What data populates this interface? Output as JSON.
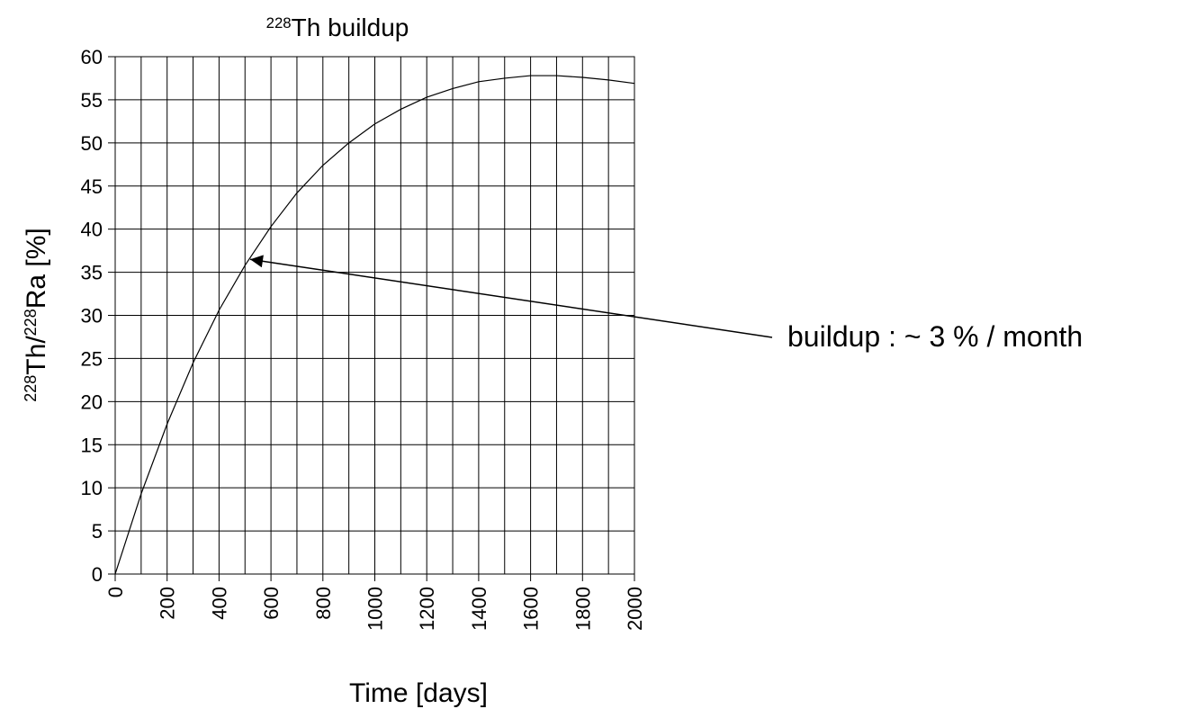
{
  "chart_data": {
    "type": "line",
    "title": [
      {
        "text": "228",
        "sup": true
      },
      {
        "text": "Th buildup"
      }
    ],
    "x_label": "Time [days]",
    "y_label": [
      {
        "text": "228",
        "sup": true
      },
      {
        "text": "Th/"
      },
      {
        "text": "228",
        "sup": true
      },
      {
        "text": "Ra [%]"
      }
    ],
    "x": [
      0,
      100,
      200,
      300,
      400,
      500,
      600,
      700,
      800,
      900,
      1000,
      1100,
      1200,
      1300,
      1400,
      1500,
      1600,
      1700,
      1800,
      1900,
      2000
    ],
    "series": [
      {
        "color": "#000000",
        "values": [
          0,
          9.3,
          17.4,
          24.5,
          30.6,
          35.8,
          40.3,
          44.2,
          47.4,
          50.0,
          52.2,
          53.9,
          55.3,
          56.3,
          57.1,
          57.5,
          57.8,
          57.8,
          57.6,
          57.3,
          56.9
        ]
      }
    ],
    "xlim": [
      0,
      2000
    ],
    "ylim": [
      0,
      60
    ],
    "xticks": [
      0,
      200,
      400,
      600,
      800,
      1000,
      1200,
      1400,
      1600,
      1800,
      2000
    ],
    "yticks": [
      0,
      5,
      10,
      15,
      20,
      25,
      30,
      35,
      40,
      45,
      50,
      55,
      60
    ],
    "xgrid": [
      0,
      100,
      200,
      300,
      400,
      500,
      600,
      700,
      800,
      900,
      1000,
      1100,
      1200,
      1300,
      1400,
      1500,
      1600,
      1700,
      1800,
      1900,
      2000
    ],
    "grid": true,
    "annotation": {
      "text": "buildup : ~ 3 % / month",
      "arrow_to": [
        520,
        36.5
      ]
    }
  }
}
